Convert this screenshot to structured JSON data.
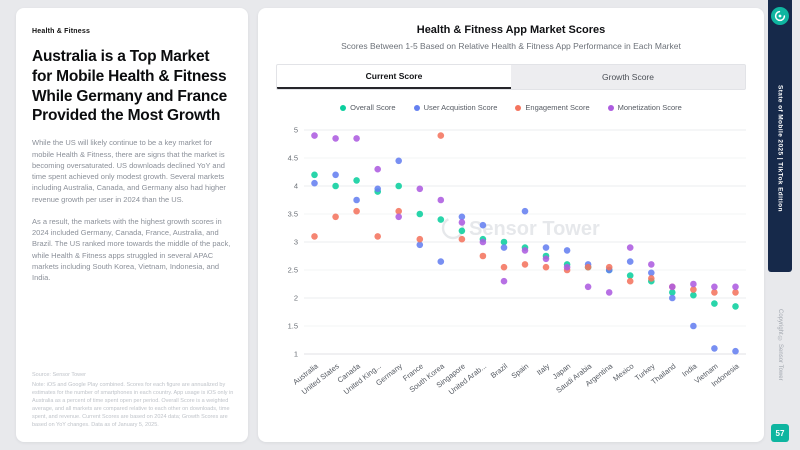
{
  "theme": {
    "background": "#e8e9ec",
    "navy": "#16294a",
    "teal_accent": "#0fb5a0"
  },
  "left_panel": {
    "eyebrow": "Health & Fitness",
    "title": "Australia is a Top Market for Mobile Health & Fitness While Germany and France Provided the Most Growth",
    "paragraphs": [
      "While the US will likely continue to be a key market for mobile Health & Fitness, there are signs that the market is becoming oversaturated. US downloads declined YoY and time spent achieved only modest growth. Several markets including Australia, Canada, and Germany also had higher revenue growth per user in 2024 than the US.",
      "As a result, the markets with the highest growth scores in 2024 included Germany, Canada, France, Australia, and Brazil. The US ranked more towards the middle of the pack, while Health & Fitness apps struggled in several APAC markets including South Korea, Vietnam, Indonesia, and India."
    ],
    "footnote_source": "Source: Sensor Tower",
    "footnote_note": "Note: iOS and Google Play combined. Scores for each figure are annualized by estimates for the number of smartphones in each country. App usage is iOS only in Australia as a percent of time spent open per period. Overall Score is a weighted average, and all markets are compared relative to each other on downloads, time spent, and revenue. Current Scores are based on 2024 data; Growth Scores are based on YoY changes. Data as of January 5, 2025."
  },
  "sidebar": {
    "report_title": "State of Mobile 2025 | TikTok Edition",
    "copyright": "Copyright © Sensor Tower",
    "page_number": "57"
  },
  "chart_data": {
    "type": "scatter",
    "title": "Health & Fitness App Market Scores",
    "subtitle": "Scores Between 1-5 Based on Relative Health & Fitness App Performance in Each Market",
    "tabs": [
      {
        "label": "Current Score",
        "active": true
      },
      {
        "label": "Growth Score",
        "active": false
      }
    ],
    "watermark": "Sensor Tower",
    "ylim": [
      1,
      5
    ],
    "yticks": [
      1,
      1.5,
      2,
      2.5,
      3,
      3.5,
      4,
      4.5,
      5
    ],
    "grid": true,
    "legend_position": "top",
    "categories": [
      "Australia",
      "United States",
      "Canada",
      "United King...",
      "Germany",
      "France",
      "South Korea",
      "Singapore",
      "United Arab...",
      "Brazil",
      "Spain",
      "Italy",
      "Japan",
      "Saudi Arabia",
      "Argentina",
      "Mexico",
      "Turkey",
      "Thailand",
      "India",
      "Vietnam",
      "Indonesia"
    ],
    "series": [
      {
        "name": "Overall Score",
        "color": "#0bcf9e",
        "values": [
          4.2,
          4.0,
          4.1,
          3.9,
          4.0,
          3.5,
          3.4,
          3.2,
          3.05,
          3.0,
          2.9,
          2.75,
          2.6,
          2.55,
          2.5,
          2.4,
          2.3,
          2.1,
          2.05,
          1.9,
          1.85
        ]
      },
      {
        "name": "User Acquistion Score",
        "color": "#6580f0",
        "values": [
          4.05,
          4.2,
          3.75,
          3.95,
          4.45,
          2.95,
          2.65,
          3.45,
          3.3,
          2.9,
          3.55,
          2.9,
          2.85,
          2.6,
          2.5,
          2.65,
          2.45,
          2.0,
          1.5,
          1.1,
          1.05
        ]
      },
      {
        "name": "Engagement Score",
        "color": "#f4745e",
        "values": [
          3.1,
          3.45,
          3.55,
          3.1,
          3.55,
          3.05,
          4.9,
          3.05,
          2.75,
          2.55,
          2.6,
          2.55,
          2.5,
          2.55,
          2.55,
          2.3,
          2.35,
          2.2,
          2.15,
          2.1,
          2.1
        ]
      },
      {
        "name": "Monetization Score",
        "color": "#ad5ce0",
        "values": [
          4.9,
          4.85,
          4.85,
          4.3,
          3.45,
          3.95,
          3.75,
          3.35,
          3.0,
          2.3,
          2.85,
          2.7,
          2.55,
          2.2,
          2.1,
          2.9,
          2.6,
          2.2,
          2.25,
          2.2,
          2.2
        ]
      }
    ]
  }
}
